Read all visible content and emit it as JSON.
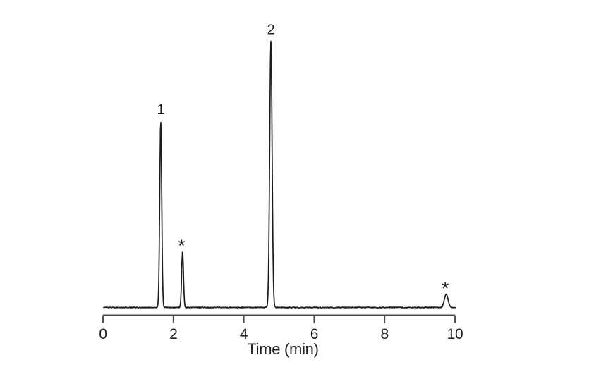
{
  "page": {
    "background": "#ffffff"
  },
  "chart_data": {
    "type": "line",
    "subtype": "chromatogram",
    "title": "",
    "xlabel": "Time (min)",
    "ylabel": "",
    "xlim": [
      0,
      10
    ],
    "x_ticks": [
      "0",
      "2",
      "4",
      "6",
      "8",
      "10"
    ],
    "x_tick_values": [
      0,
      2,
      4,
      6,
      8,
      10
    ],
    "grid": false,
    "legend": false,
    "y_axis_shown": false,
    "peaks": [
      {
        "label": "1",
        "retention_time_min": 1.64,
        "relative_height": 0.7,
        "width_sigma_min": 0.028
      },
      {
        "label": "*",
        "retention_time_min": 2.26,
        "relative_height": 0.21,
        "width_sigma_min": 0.026
      },
      {
        "label": "2",
        "retention_time_min": 4.77,
        "relative_height": 1.0,
        "width_sigma_min": 0.034
      },
      {
        "label": "*",
        "retention_time_min": 9.75,
        "relative_height": 0.05,
        "width_sigma_min": 0.052
      }
    ],
    "colors": {
      "trace": "#1c1c1c",
      "axis": "#464646",
      "text": "#231f20",
      "background": "#ffffff"
    }
  }
}
